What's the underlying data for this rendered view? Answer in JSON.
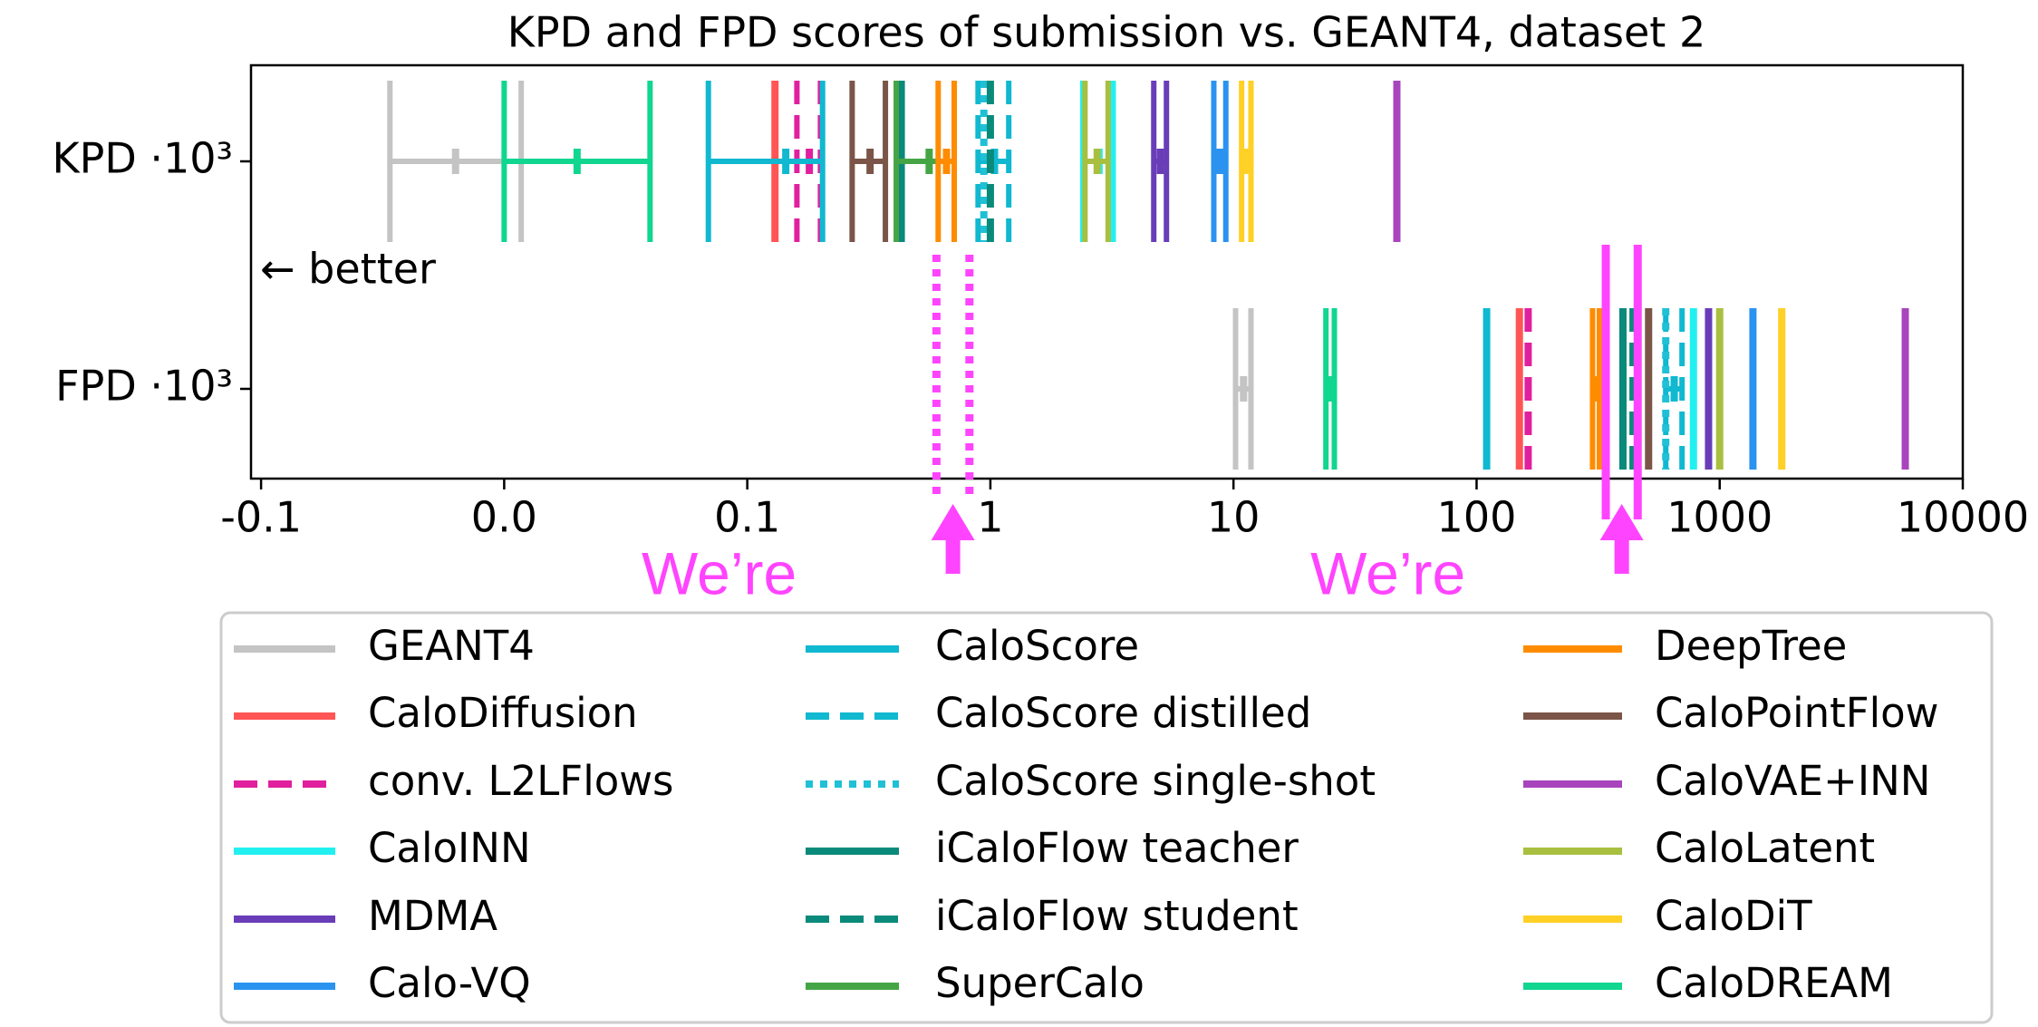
{
  "chart_data": {
    "type": "errorbar",
    "title": "KPD and FPD scores of submission vs. GEANT4, dataset 2",
    "categories": [
      "KPD ·10³",
      "FPD ·10³"
    ],
    "xscale": "symlog",
    "linthresh": 0.1,
    "xlim": [
      -0.11,
      10000
    ],
    "xticks": [
      -0.1,
      {
        "value": 0,
        "label": "0.0"
      },
      0.1,
      1,
      10,
      100,
      1000,
      10000
    ],
    "text_annotation": "← better",
    "annotations": [
      {
        "text": "We’re",
        "color": "#ff44ff",
        "style": "dotted",
        "values": [
          0.6,
          0.82
        ]
      },
      {
        "text": "We’re",
        "color": "#ff44ff",
        "style": "solid",
        "values": [
          340,
          460
        ]
      }
    ],
    "series": [
      {
        "name": "GEANT4",
        "color": "#c4c4c4",
        "dash": "solid",
        "values": [
          -0.02,
          11
        ],
        "errors": [
          0.027,
          0.8
        ]
      },
      {
        "name": "CaloDiffusion",
        "color": "#ff5555",
        "dash": "solid",
        "values": [
          0.13,
          150
        ],
        "errors": [
          null,
          null
        ]
      },
      {
        "name": "conv. L2LFlows",
        "color": "#e0209e",
        "dash": "dashed",
        "values": [
          0.18,
          163
        ],
        "errors": [
          0.02,
          null
        ]
      },
      {
        "name": "CaloINN",
        "color": "#22f0f0",
        "dash": "solid",
        "values": [
          2.8,
          780
        ],
        "errors": [
          0.4,
          null
        ]
      },
      {
        "name": "MDMA",
        "color": "#6a3db8",
        "dash": "solid",
        "values": [
          5.0,
          900
        ],
        "errors": [
          0.3,
          null
        ]
      },
      {
        "name": "Calo-VQ",
        "color": "#2a93f0",
        "dash": "solid",
        "values": [
          8.8,
          1370
        ],
        "errors": [
          0.5,
          null
        ]
      },
      {
        "name": "CaloScore",
        "color": "#10b8d0",
        "dash": "solid",
        "values": [
          0.144,
          110
        ],
        "errors": [
          0.06,
          null
        ]
      },
      {
        "name": "CaloScore distilled",
        "color": "#10b8d0",
        "dash": "dashed",
        "values": [
          1.04,
          650
        ],
        "errors": [
          0.15,
          50
        ]
      },
      {
        "name": "CaloScore single-shot",
        "color": "#20c0d6",
        "dash": "dotted",
        "values": [
          0.94,
          600
        ],
        "errors": [
          null,
          null
        ]
      },
      {
        "name": "iCaloFlow teacher",
        "color": "#0a8a7a",
        "dash": "solid",
        "values": [
          0.43,
          400
        ],
        "errors": [
          null,
          null
        ]
      },
      {
        "name": "iCaloFlow student",
        "color": "#0a8a7a",
        "dash": "dashed",
        "values": [
          1.0,
          440
        ],
        "errors": [
          null,
          null
        ]
      },
      {
        "name": "SuperCalo",
        "color": "#45a545",
        "dash": "solid",
        "values": [
          0.56,
          null
        ],
        "errors": [
          0.15,
          null
        ]
      },
      {
        "name": "DeepTree",
        "color": "#ff8c00",
        "dash": "solid",
        "values": [
          0.66,
          310
        ],
        "errors": [
          0.05,
          10
        ]
      },
      {
        "name": "CaloPointFlow",
        "color": "#7a5548",
        "dash": "solid",
        "values": [
          0.32,
          510
        ],
        "errors": [
          0.05,
          null
        ]
      },
      {
        "name": "CaloVAE+INN",
        "color": "#a845bd",
        "dash": "solid",
        "values": [
          47,
          5800
        ],
        "errors": [
          null,
          null
        ]
      },
      {
        "name": "CaloLatent",
        "color": "#a8bf40",
        "dash": "solid",
        "values": [
          2.75,
          1000
        ],
        "errors": [
          0.3,
          null
        ]
      },
      {
        "name": "CaloDiT",
        "color": "#ffd025",
        "dash": "solid",
        "values": [
          11.3,
          1800
        ],
        "errors": [
          0.5,
          null
        ]
      },
      {
        "name": "CaloDREAM",
        "color": "#10d690",
        "dash": "solid",
        "values": [
          0.03,
          25
        ],
        "errors": [
          0.03,
          1
        ]
      }
    ]
  }
}
